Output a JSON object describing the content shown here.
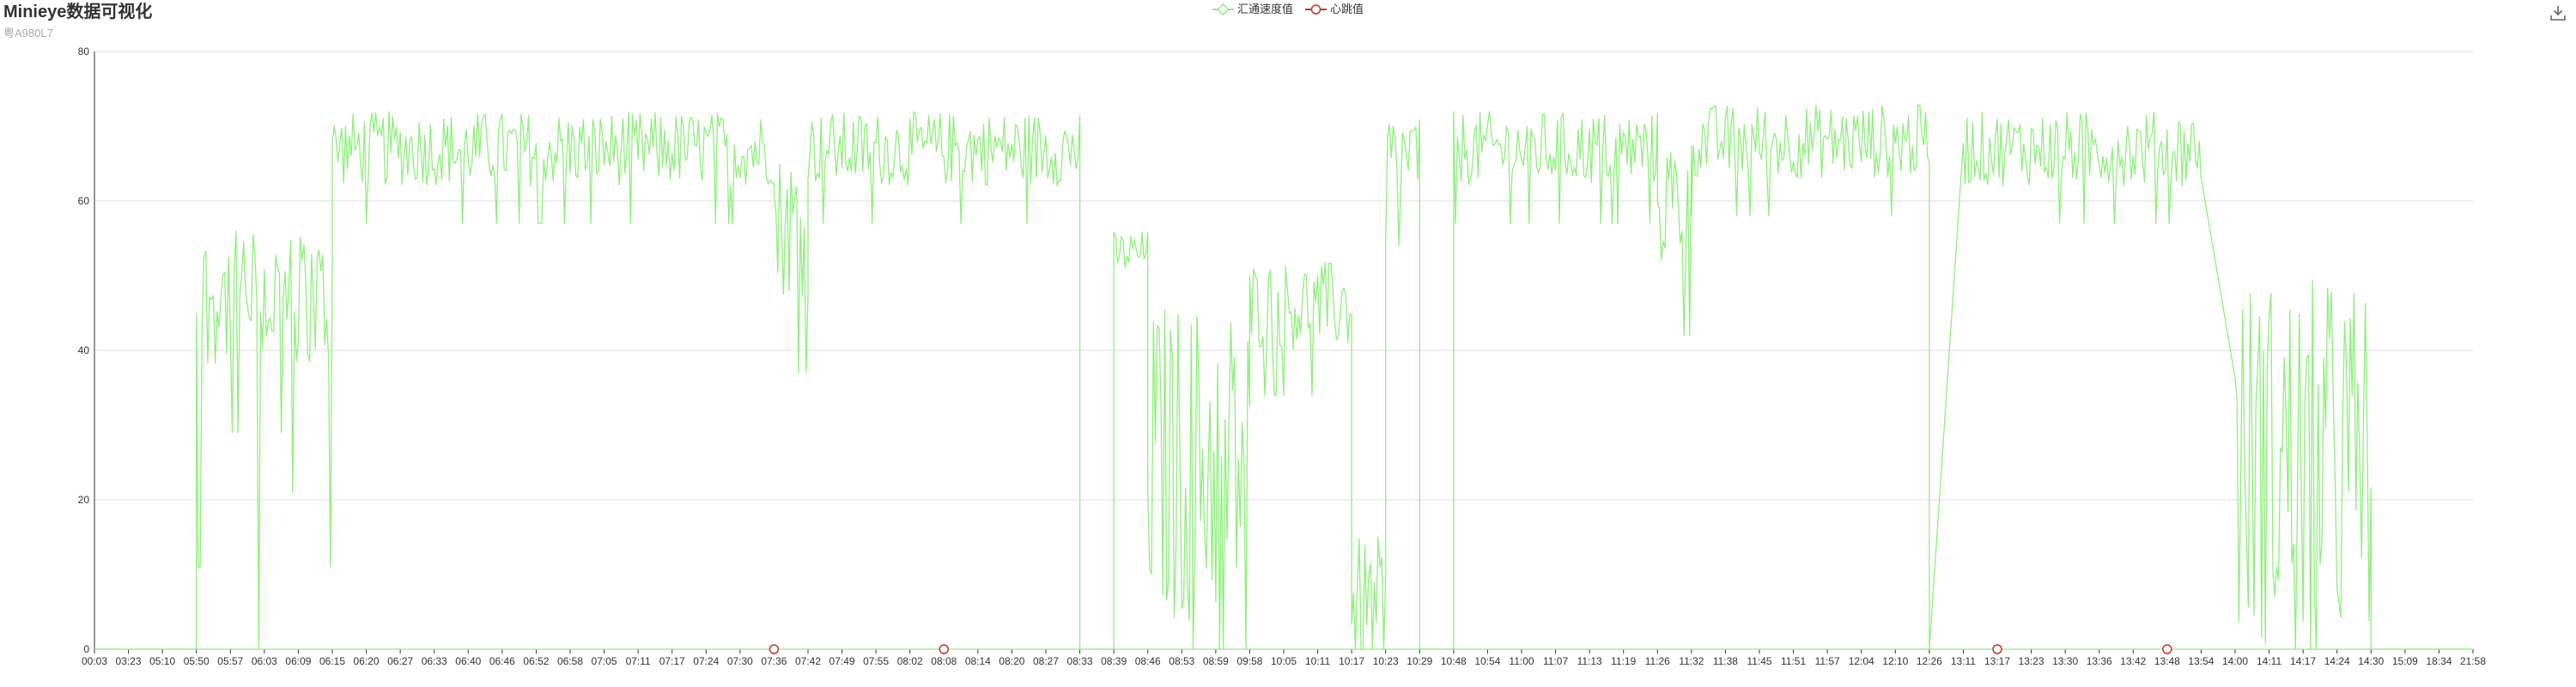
{
  "title": "Minieye数据可视化",
  "subtitle": "粤A980L7",
  "toolbar": {
    "download_icon": "download-icon"
  },
  "legend": [
    {
      "name": "汇通速度值",
      "color": "#90ee7e",
      "symbol": "diamond-outline"
    },
    {
      "name": "心跳值",
      "color": "#c23531",
      "symbol": "circle-outline"
    }
  ],
  "chart_data": {
    "type": "line",
    "title": "Minieye数据可视化",
    "subtitle": "粤A980L7",
    "ylim": [
      0,
      80
    ],
    "yticks": [
      0,
      20,
      40,
      60,
      80
    ],
    "grid": true,
    "legend_position": "top-center",
    "x_tick_labels": [
      "00:03",
      "03:23",
      "05:10",
      "05:50",
      "05:57",
      "06:03",
      "06:09",
      "06:15",
      "06:20",
      "06:27",
      "06:33",
      "06:40",
      "06:46",
      "06:52",
      "06:58",
      "07:05",
      "07:11",
      "07:17",
      "07:24",
      "07:30",
      "07:36",
      "07:42",
      "07:49",
      "07:55",
      "08:02",
      "08:08",
      "08:14",
      "08:20",
      "08:27",
      "08:33",
      "08:39",
      "08:46",
      "08:53",
      "08:59",
      "09:58",
      "10:05",
      "10:11",
      "10:17",
      "10:23",
      "10:29",
      "10:48",
      "10:54",
      "11:00",
      "11:07",
      "11:13",
      "11:19",
      "11:26",
      "11:32",
      "11:38",
      "11:45",
      "11:51",
      "11:57",
      "12:04",
      "12:10",
      "12:26",
      "13:11",
      "13:17",
      "13:23",
      "13:30",
      "13:36",
      "13:42",
      "13:48",
      "13:54",
      "14:00",
      "14:11",
      "14:17",
      "14:24",
      "14:30",
      "15:09",
      "18:34",
      "21:58"
    ],
    "series": [
      {
        "name": "汇通速度值",
        "color": "#90ee7e",
        "segments": [
          {
            "from": "00:03",
            "to": "05:50",
            "level": 0,
            "spread": 0,
            "spikes": [
              13,
              7
            ]
          },
          {
            "from": "05:50",
            "to": "06:15",
            "level": 47,
            "spread": 9,
            "dips": [
              0,
              11,
              21,
              0,
              0,
              0
            ]
          },
          {
            "from": "06:15",
            "to": "07:36",
            "level": 67,
            "spread": 5
          },
          {
            "from": "07:36",
            "to": "07:42",
            "level": 57,
            "spread": 10
          },
          {
            "from": "07:42",
            "to": "08:33",
            "level": 67,
            "spread": 5
          },
          {
            "from": "08:33",
            "to": "08:39",
            "level": 0,
            "spread": 0
          },
          {
            "from": "08:39",
            "to": "08:46",
            "level": 53,
            "spread": 3
          },
          {
            "from": "08:46",
            "to": "09:58",
            "level": 25,
            "spread": 22
          },
          {
            "from": "09:58",
            "to": "10:17",
            "level": 46,
            "spread": 6
          },
          {
            "from": "10:17",
            "to": "10:23",
            "level": 5,
            "spread": 10
          },
          {
            "from": "10:23",
            "to": "10:29",
            "level": 66,
            "spread": 6
          },
          {
            "from": "10:29",
            "to": "10:48",
            "level": 0,
            "spread": 0
          },
          {
            "from": "10:48",
            "to": "11:26",
            "level": 67,
            "spread": 5
          },
          {
            "from": "11:26",
            "to": "11:32",
            "level": 60,
            "spread": 9
          },
          {
            "from": "11:32",
            "to": "12:26",
            "level": 68,
            "spread": 5
          },
          {
            "from": "12:26",
            "to": "12:26",
            "level": 0,
            "spread": 0
          },
          {
            "from": "13:11",
            "to": "13:54",
            "level": 67,
            "spread": 5
          },
          {
            "from": "14:00",
            "to": "14:30",
            "level": 25,
            "spread": 25
          },
          {
            "from": "14:30",
            "to": "21:58",
            "level": 0,
            "spread": 0
          }
        ]
      },
      {
        "name": "心跳值",
        "color": "#c23531",
        "points": [
          {
            "x": "07:36",
            "y": 0
          },
          {
            "x": "08:08",
            "y": 0
          },
          {
            "x": "13:17",
            "y": 0
          },
          {
            "x": "13:48",
            "y": 0
          }
        ]
      }
    ]
  }
}
